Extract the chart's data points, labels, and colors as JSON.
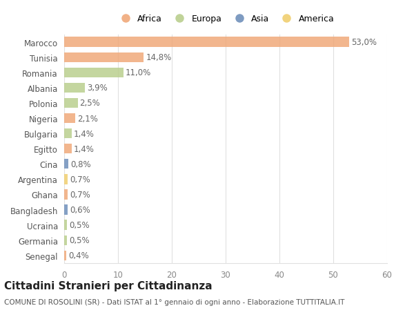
{
  "countries": [
    "Marocco",
    "Tunisia",
    "Romania",
    "Albania",
    "Polonia",
    "Nigeria",
    "Bulgaria",
    "Egitto",
    "Cina",
    "Argentina",
    "Ghana",
    "Bangladesh",
    "Ucraina",
    "Germania",
    "Senegal"
  ],
  "values": [
    53.0,
    14.8,
    11.0,
    3.9,
    2.5,
    2.1,
    1.4,
    1.4,
    0.8,
    0.7,
    0.7,
    0.6,
    0.5,
    0.5,
    0.4
  ],
  "labels": [
    "53,0%",
    "14,8%",
    "11,0%",
    "3,9%",
    "2,5%",
    "2,1%",
    "1,4%",
    "1,4%",
    "0,8%",
    "0,7%",
    "0,7%",
    "0,6%",
    "0,5%",
    "0,5%",
    "0,4%"
  ],
  "continents": [
    "Africa",
    "Africa",
    "Europa",
    "Europa",
    "Europa",
    "Africa",
    "Europa",
    "Africa",
    "Asia",
    "America",
    "Africa",
    "Asia",
    "Europa",
    "Europa",
    "Africa"
  ],
  "continent_colors": {
    "Africa": "#F0A97A",
    "Europa": "#BACF8E",
    "Asia": "#7090BB",
    "America": "#F0CF70"
  },
  "legend_items": [
    "Africa",
    "Europa",
    "Asia",
    "America"
  ],
  "legend_colors": [
    "#F0A97A",
    "#BACF8E",
    "#7090BB",
    "#F0CF70"
  ],
  "xlim": [
    0,
    60
  ],
  "xticks": [
    0,
    10,
    20,
    30,
    40,
    50,
    60
  ],
  "title": "Cittadini Stranieri per Cittadinanza",
  "subtitle": "COMUNE DI ROSOLINI (SR) - Dati ISTAT al 1° gennaio di ogni anno - Elaborazione TUTTITALIA.IT",
  "bg_color": "#ffffff",
  "grid_color": "#e0e0e0",
  "bar_height": 0.65,
  "label_fontsize": 8.5,
  "tick_fontsize": 8.5,
  "title_fontsize": 11,
  "subtitle_fontsize": 7.5
}
